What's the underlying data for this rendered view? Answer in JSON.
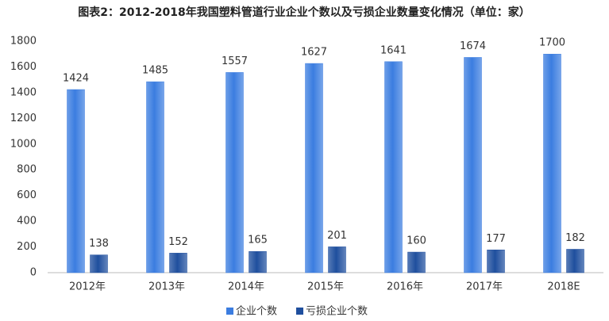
{
  "chart_data": {
    "type": "bar",
    "title": "图表2：2012-2018年我国塑料管道行业企业个数以及亏损企业数量变化情况（单位：家）",
    "categories": [
      "2012年",
      "2013年",
      "2014年",
      "2015年",
      "2016年",
      "2017年",
      "2018E"
    ],
    "series": [
      {
        "name": "企业个数",
        "color": "#3b7de0",
        "values": [
          1424,
          1485,
          1557,
          1627,
          1641,
          1674,
          1700
        ]
      },
      {
        "name": "亏损企业个数",
        "color": "#1f4f9e",
        "values": [
          138,
          152,
          165,
          201,
          160,
          177,
          182
        ]
      }
    ],
    "ylim": [
      0,
      1800
    ],
    "yticks": [
      0,
      200,
      400,
      600,
      800,
      1000,
      1200,
      1400,
      1600,
      1800
    ],
    "grid": false,
    "legend": "bottom"
  }
}
